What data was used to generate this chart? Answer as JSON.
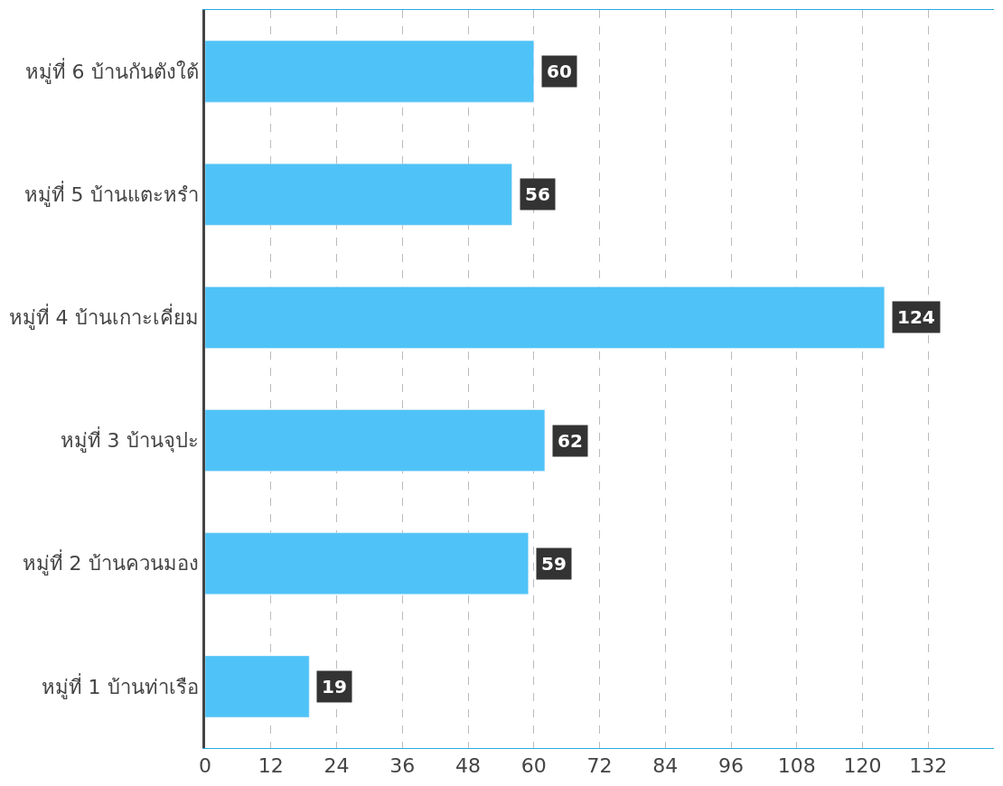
{
  "chart_data": {
    "type": "bar",
    "orientation": "horizontal",
    "categories": [
      "หมู่ที่ 6 บ้านกันตังใต้",
      "หมู่ที่ 5 บ้านแตะหรำ",
      "หมู่ที่ 4 บ้านเกาะเคี่ยม",
      "หมู่ที่ 3 บ้านจุปะ",
      "หมู่ที่ 2 บ้านควนมอง",
      "หมู่ที่ 1 บ้านท่าเรือ"
    ],
    "values": [
      60,
      56,
      124,
      62,
      59,
      19
    ],
    "color": "#4fc3f7",
    "xlim": [
      0,
      144
    ],
    "xticks": [
      0,
      12,
      24,
      36,
      48,
      60,
      72,
      84,
      96,
      108,
      120,
      132
    ],
    "grid": "x",
    "data_labels": true
  }
}
